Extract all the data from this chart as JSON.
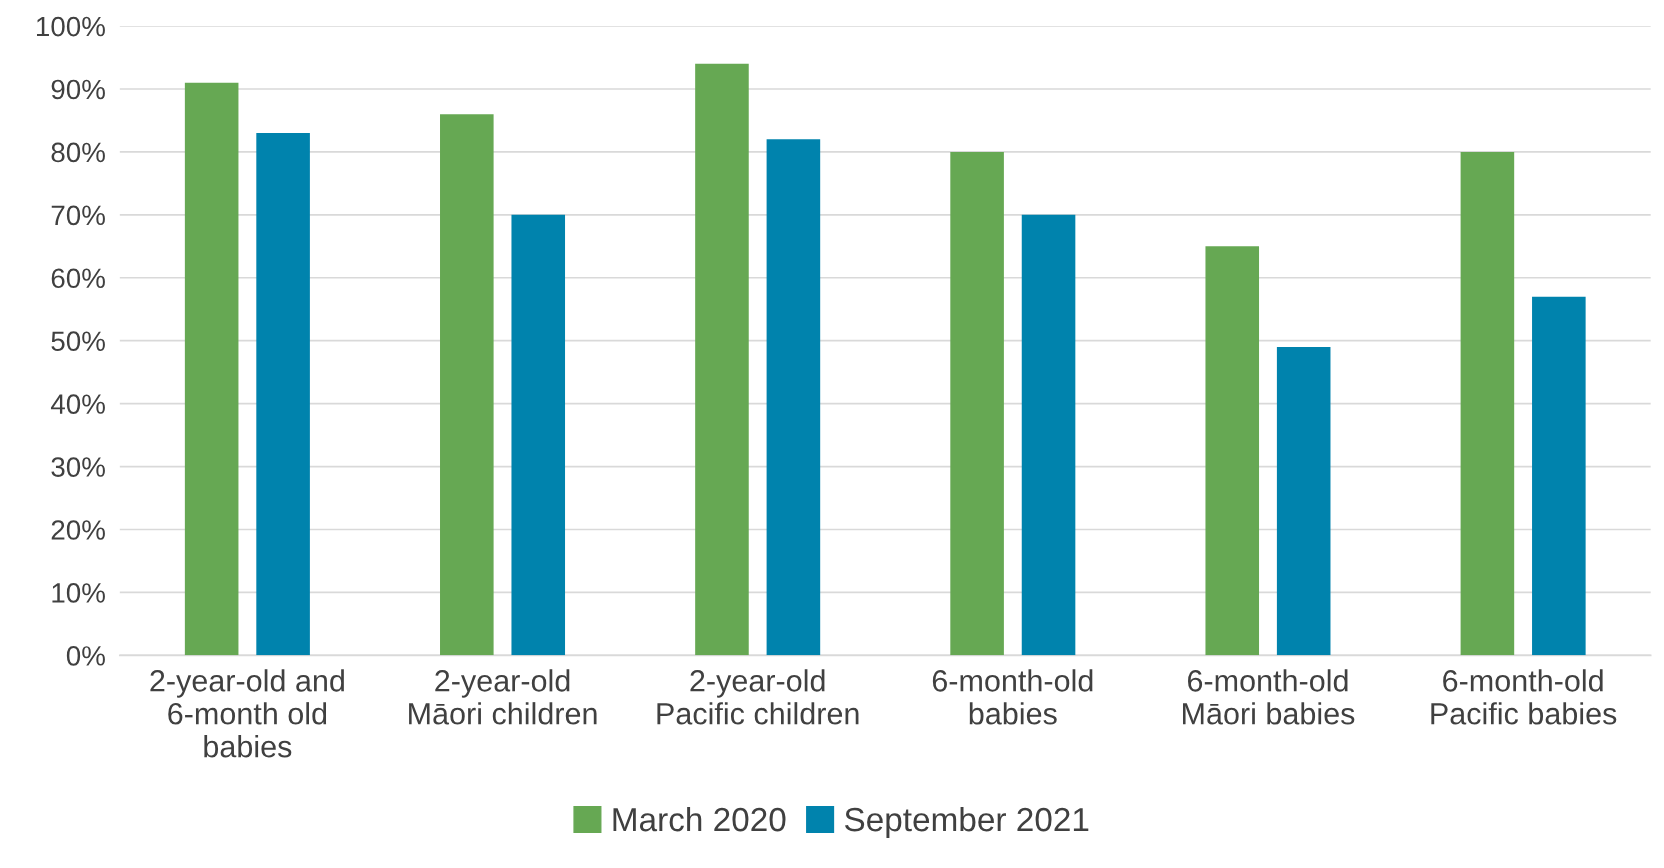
{
  "chart_data": {
    "type": "bar",
    "categories": [
      "2-year-old and\n6-month old\nbabies",
      "2-year-old\nMāori children",
      "2-year-old\nPacific children",
      "6-month-old\nbabies",
      "6-month-old\nMāori babies",
      "6-month-old\nPacific babies"
    ],
    "series": [
      {
        "name": "March 2020",
        "color": "#66a853",
        "values": [
          91,
          86,
          94,
          80,
          65,
          80
        ]
      },
      {
        "name": "September 2021",
        "color": "#0083ad",
        "values": [
          83,
          70,
          82,
          70,
          49,
          57
        ]
      }
    ],
    "ylim": [
      0,
      100
    ],
    "yticks": [
      {
        "value": 0,
        "label": "0%"
      },
      {
        "value": 10,
        "label": "10%"
      },
      {
        "value": 20,
        "label": "20%"
      },
      {
        "value": 30,
        "label": "30%"
      },
      {
        "value": 40,
        "label": "40%"
      },
      {
        "value": 50,
        "label": "50%"
      },
      {
        "value": 60,
        "label": "60%"
      },
      {
        "value": 70,
        "label": "70%"
      },
      {
        "value": 80,
        "label": "80%"
      },
      {
        "value": 90,
        "label": "90%"
      },
      {
        "value": 100,
        "label": "100%"
      }
    ],
    "grid": "y",
    "legend": "bottom"
  }
}
